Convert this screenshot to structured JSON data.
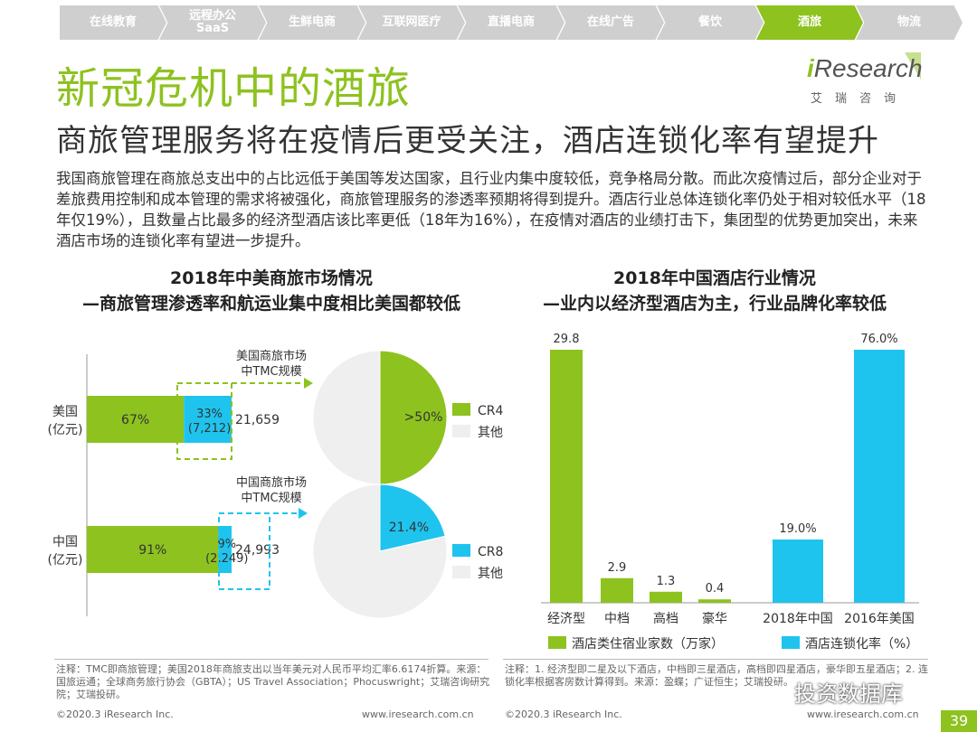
{
  "nav": {
    "items": [
      {
        "l1": "在线教育",
        "l2": ""
      },
      {
        "l1": "远程办公",
        "l2": "SaaS"
      },
      {
        "l1": "生鲜电商",
        "l2": ""
      },
      {
        "l1": "互联网医疗",
        "l2": ""
      },
      {
        "l1": "直播电商",
        "l2": ""
      },
      {
        "l1": "在线广告",
        "l2": ""
      },
      {
        "l1": "餐饮",
        "l2": ""
      },
      {
        "l1": "酒旅",
        "l2": ""
      },
      {
        "l1": "物流",
        "l2": ""
      }
    ],
    "active_index": 7
  },
  "page": {
    "title": "新冠危机中的酒旅",
    "subtitle": "商旅管理服务将在疫情后更受关注，酒店连锁化率有望提升",
    "paragraph": "我国商旅管理在商旅总支出中的占比远低于美国等发达国家，且行业内集中度较低，竞争格局分散。而此次疫情过后，部分企业对于差旅费用控制和成本管理的需求将被强化，商旅管理服务的渗透率预期将得到提升。酒店行业总体连锁化率仍处于相对较低水平（18年仅19%），且数量占比最多的经济型酒店该比率更低（18年为16%），在疫情对酒店的业绩打击下，集团型的优势更加突出，未来酒店市场的连锁化率有望进一步提升。"
  },
  "logo": {
    "i": "i",
    "word": "Research",
    "sub": "艾瑞咨询"
  },
  "left_section": {
    "title1": "2018年中美商旅市场情况",
    "title2": "—商旅管理渗透率和航运业集中度相比美国都较低"
  },
  "right_section": {
    "title1": "2018年中国酒店行业情况",
    "title2": "—业内以经济型酒店为主，行业品牌化率较低"
  },
  "colors": {
    "green": "#8dc21f",
    "blue": "#1ec4ee",
    "grey": "#efefef",
    "nav_grey": "#cfcfcf"
  },
  "chart_data": [
    {
      "type": "bar",
      "orientation": "horizontal-stacked",
      "categories": [
        "美国\n(亿元)",
        "中国\n(亿元)"
      ],
      "series": [
        {
          "values_pct": [
            67,
            91
          ],
          "labels": [
            "67%",
            "91%"
          ]
        },
        {
          "values_pct": [
            33,
            9
          ],
          "labels": [
            "33%\n(7,212)",
            "9%\n(2,249)"
          ]
        }
      ],
      "totals": [
        "21,659",
        "24,993"
      ],
      "callouts": [
        "美国商旅市场\n中TMC规模",
        "中国商旅市场\n中TMC规模"
      ]
    },
    {
      "type": "pie",
      "title": "",
      "slices": [
        {
          "name": "CR4",
          "value": 50,
          "label": ">50%"
        },
        {
          "name": "其他",
          "value": 50
        }
      ]
    },
    {
      "type": "pie",
      "title": "",
      "slices": [
        {
          "name": "CR8",
          "value": 21.4,
          "label": "21.4%"
        },
        {
          "name": "其他",
          "value": 78.6
        }
      ]
    },
    {
      "type": "bar",
      "categories": [
        "经济型",
        "中档",
        "高档",
        "豪华"
      ],
      "values": [
        29.8,
        2.9,
        1.3,
        0.4
      ],
      "labels": [
        "29.8",
        "2.9",
        "1.3",
        "0.4"
      ],
      "legend": "酒店类住宿业家数（万家）"
    },
    {
      "type": "bar",
      "categories": [
        "2018年中国",
        "2016年美国"
      ],
      "values": [
        19.0,
        76.0
      ],
      "labels": [
        "19.0%",
        "76.0%"
      ],
      "legend": "酒店连锁化率（%）"
    }
  ],
  "notes": {
    "left": "注释：TMC即商旅管理；美国2018年商旅支出以当年美元对人民币平均汇率6.6174折算。来源：国旅运通；全球商务旅行协会（GBTA）；US Travel Association；Phocuswright；艾瑞咨询研究院；艾瑞投研。",
    "right": "注释：1. 经济型即二星及以下酒店，中档即三星酒店，高档即四星酒店，豪华即五星酒店；2. 连锁化率根据客房数计算得到。来源：盈蝶；广证恒生；艾瑞投研。"
  },
  "footer": {
    "left_copy": "©2020.3 iResearch Inc.",
    "left_url": "www.iresearch.com.cn",
    "right_copy": "©2020.3 iResearch Inc.",
    "right_url": "www.iresearch.com.cn",
    "page": "39",
    "watermark": "投资数据库"
  }
}
